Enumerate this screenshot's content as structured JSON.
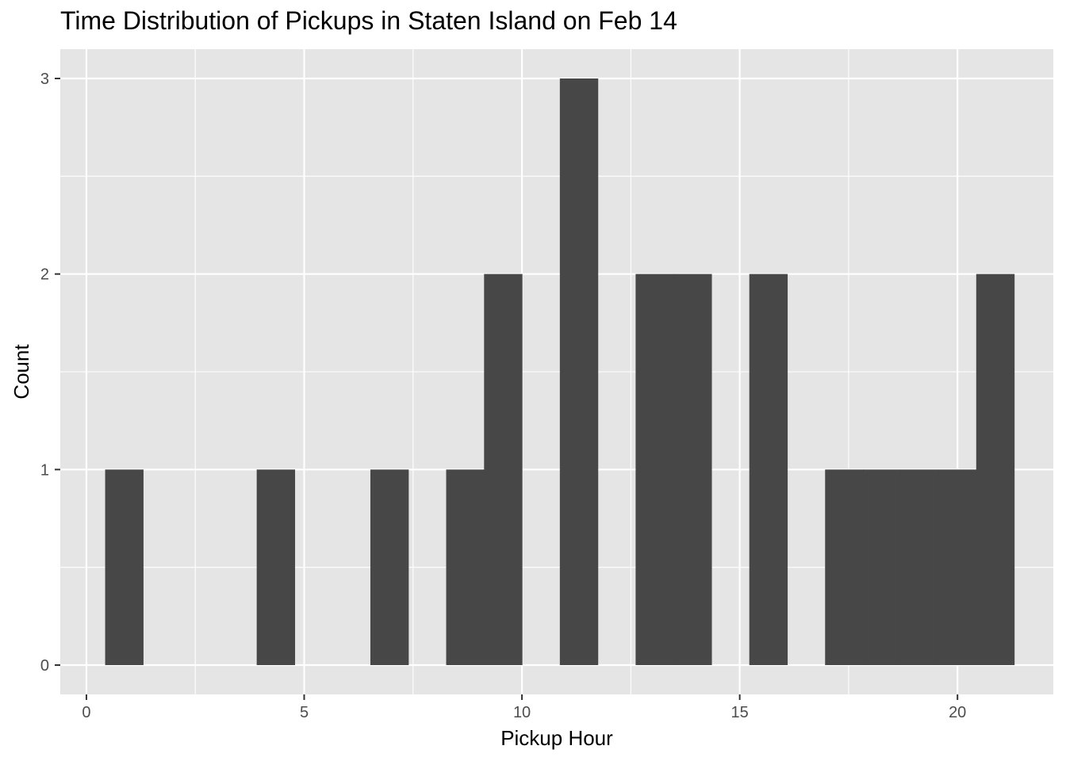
{
  "chart_data": {
    "type": "histogram",
    "title": "Time Distribution of Pickups in Staten Island on Feb 14",
    "xlabel": "Pickup Hour",
    "ylabel": "Count",
    "xlim": [
      -0.6,
      22.2
    ],
    "ylim": [
      -0.15,
      3.15
    ],
    "x_ticks": [
      0,
      5,
      10,
      15,
      20
    ],
    "y_ticks": [
      0,
      1,
      2,
      3
    ],
    "bin_width": 0.87,
    "bins": [
      {
        "x_start": 0.43,
        "x_end": 1.3,
        "count": 1
      },
      {
        "x_start": 3.91,
        "x_end": 4.78,
        "count": 1
      },
      {
        "x_start": 6.52,
        "x_end": 7.39,
        "count": 1
      },
      {
        "x_start": 8.26,
        "x_end": 9.13,
        "count": 1
      },
      {
        "x_start": 9.13,
        "x_end": 10.0,
        "count": 2
      },
      {
        "x_start": 10.87,
        "x_end": 11.74,
        "count": 3
      },
      {
        "x_start": 12.61,
        "x_end": 13.48,
        "count": 2
      },
      {
        "x_start": 13.48,
        "x_end": 14.35,
        "count": 2
      },
      {
        "x_start": 15.22,
        "x_end": 16.09,
        "count": 2
      },
      {
        "x_start": 16.96,
        "x_end": 17.83,
        "count": 1
      },
      {
        "x_start": 17.83,
        "x_end": 18.7,
        "count": 1
      },
      {
        "x_start": 18.7,
        "x_end": 19.57,
        "count": 1
      },
      {
        "x_start": 19.57,
        "x_end": 20.43,
        "count": 1
      },
      {
        "x_start": 20.43,
        "x_end": 21.3,
        "count": 2
      }
    ],
    "grid": true,
    "colors": {
      "panel_background": "#e5e5e5",
      "grid_major": "#ffffff",
      "bar_fill": "#474747"
    }
  }
}
